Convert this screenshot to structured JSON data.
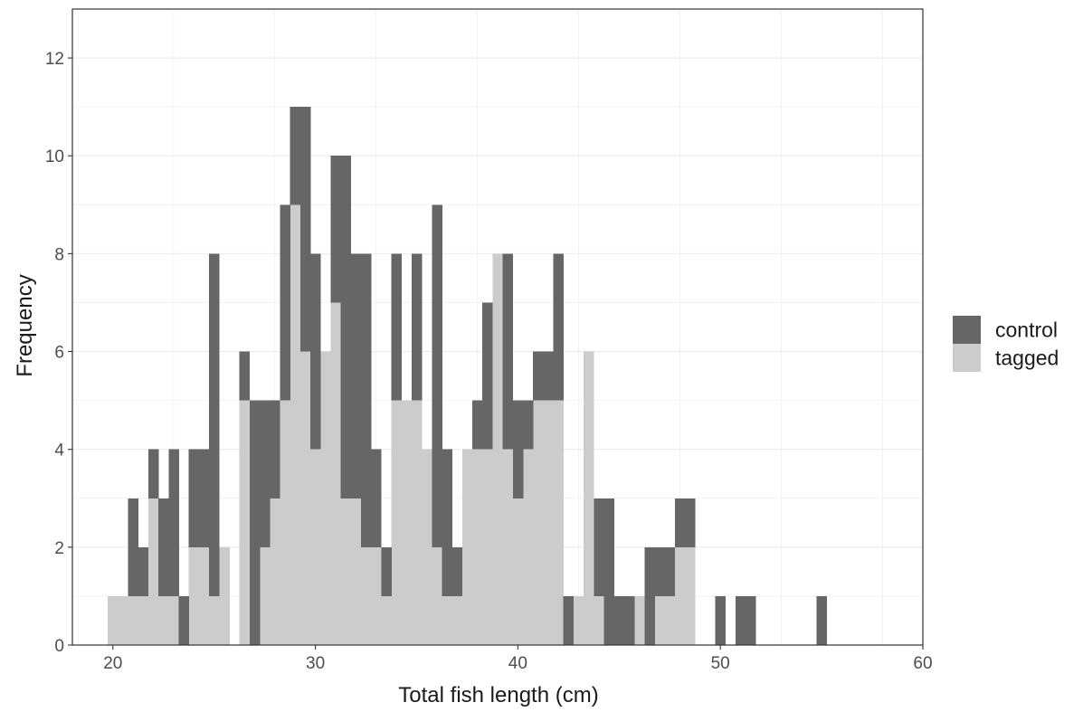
{
  "chart_data": {
    "type": "bar",
    "subtype": "stacked-histogram",
    "title": "",
    "xlabel": "Total fish length (cm)",
    "ylabel": "Frequency",
    "xlim": [
      18,
      60
    ],
    "ylim": [
      0,
      13
    ],
    "x_ticks": [
      20,
      30,
      40,
      50,
      60
    ],
    "y_ticks": [
      0,
      2,
      4,
      6,
      8,
      10,
      12
    ],
    "bin_width": 0.5,
    "grid": true,
    "legend_position": "right",
    "colors": {
      "control": "#666666",
      "tagged": "#cccccc"
    },
    "bin_starts": [
      19.75,
      20.25,
      20.75,
      21.25,
      21.75,
      22.25,
      22.75,
      23.25,
      23.75,
      24.25,
      24.75,
      25.25,
      25.75,
      26.25,
      26.75,
      27.25,
      27.75,
      28.25,
      28.75,
      29.25,
      29.75,
      30.25,
      30.75,
      31.25,
      31.75,
      32.25,
      32.75,
      33.25,
      33.75,
      34.25,
      34.75,
      35.25,
      35.75,
      36.25,
      36.75,
      37.25,
      37.75,
      38.25,
      38.75,
      39.25,
      39.75,
      40.25,
      40.75,
      41.25,
      41.75,
      42.25,
      42.75,
      43.25,
      43.75,
      44.25,
      44.75,
      45.25,
      45.75,
      46.25,
      46.75,
      47.25,
      47.75,
      48.25,
      48.75,
      49.25,
      49.75,
      50.25,
      50.75,
      51.25,
      51.75,
      52.25,
      52.75,
      53.25,
      53.75,
      54.25,
      54.75,
      55.25,
      55.75
    ],
    "series": [
      {
        "name": "tagged",
        "values": [
          1,
          1,
          1,
          1,
          3,
          1,
          1,
          0,
          2,
          2,
          1,
          2,
          0,
          5,
          0,
          2,
          3,
          5,
          9,
          6,
          4,
          6,
          7,
          3,
          3,
          2,
          2,
          1,
          5,
          5,
          5,
          4,
          2,
          1,
          1,
          4,
          4,
          4,
          8,
          4,
          3,
          4,
          5,
          5,
          5,
          0,
          1,
          6,
          1,
          0,
          0,
          0,
          1,
          0,
          1,
          1,
          2,
          2,
          0,
          0,
          0,
          0,
          0,
          0,
          0,
          0,
          0,
          0,
          0,
          0,
          0,
          0,
          0
        ],
        "value_labels": []
      },
      {
        "name": "control",
        "values": [
          0,
          0,
          2,
          1,
          1,
          2,
          3,
          1,
          2,
          2,
          7,
          0,
          0,
          1,
          5,
          3,
          2,
          4,
          2,
          5,
          4,
          0,
          3,
          7,
          5,
          6,
          2,
          1,
          3,
          0,
          3,
          0,
          7,
          3,
          1,
          0,
          1,
          3,
          0,
          4,
          2,
          1,
          1,
          1,
          3,
          1,
          0,
          0,
          2,
          3,
          1,
          1,
          0,
          2,
          1,
          1,
          1,
          1,
          0,
          0,
          1,
          0,
          1,
          1,
          0,
          0,
          0,
          0,
          0,
          0,
          1,
          0,
          0
        ],
        "value_labels": []
      }
    ]
  }
}
